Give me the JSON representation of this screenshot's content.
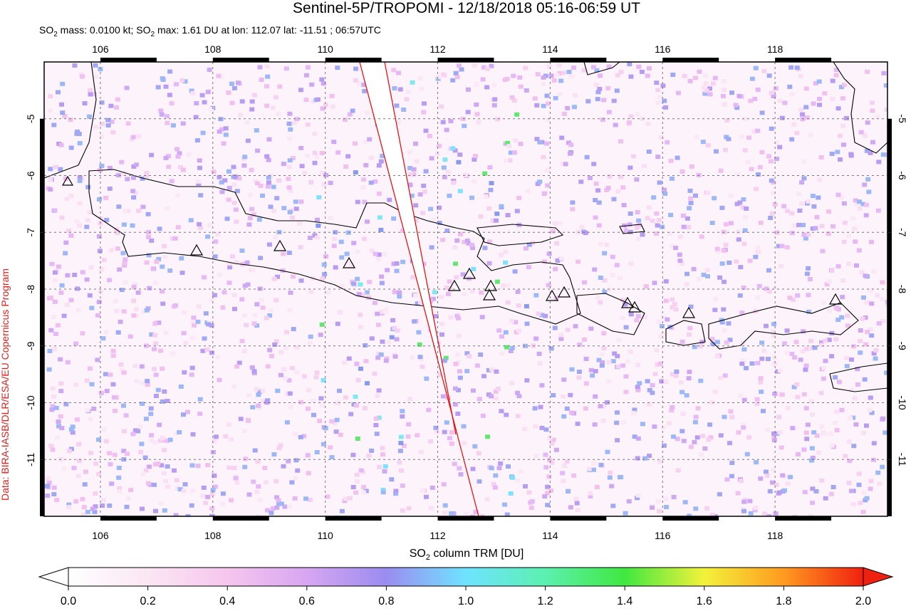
{
  "chart_data": {
    "type": "map",
    "title": "Sentinel-5P/TROPOMI - 12/18/2018 05:16-06:59 UT",
    "subtitle_parts": [
      "SO",
      "2",
      " mass: 0.0100 kt; SO",
      "2",
      " max: 1.61 DU at lon: 112.07 lat: -11.51 ; 06:57UTC"
    ],
    "xlim": [
      105,
      120
    ],
    "ylim": [
      -12,
      -4
    ],
    "xticks": [
      106,
      108,
      110,
      112,
      114,
      116,
      118
    ],
    "yticks": [
      -5,
      -6,
      -7,
      -8,
      -9,
      -10,
      -11
    ],
    "grid": true,
    "colorbar_label_parts": [
      "SO",
      "2",
      " column TRM [DU]"
    ],
    "clim": [
      0,
      2
    ],
    "cticks": [
      {
        "value": 0,
        "label": "0.0"
      },
      {
        "value": 0.2,
        "label": "0.2"
      },
      {
        "value": 0.4,
        "label": "0.4"
      },
      {
        "value": 0.6,
        "label": "0.6"
      },
      {
        "value": 0.8,
        "label": "0.8"
      },
      {
        "value": 1,
        "label": "1.0"
      },
      {
        "value": 1.2,
        "label": "1.2"
      },
      {
        "value": 1.4,
        "label": "1.4"
      },
      {
        "value": 1.6,
        "label": "1.6"
      },
      {
        "value": 1.8,
        "label": "1.8"
      },
      {
        "value": 2,
        "label": "2.0"
      }
    ],
    "credit": "Data: BIRA-IASB/DLR/ESA/EU Copernicus Program"
  }
}
